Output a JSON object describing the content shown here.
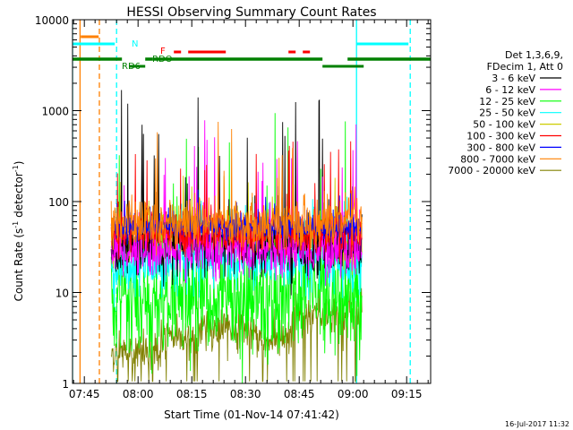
{
  "chart_data": {
    "type": "line",
    "title": "HESSI Observing Summary Count Rates",
    "xlabel": "Start Time (01-Nov-14 07:41:42)",
    "ylabel_prefix": "Count Rate (s",
    "ylabel_sup": "-1",
    "ylabel_mid": " detector",
    "ylabel_suffix": ")",
    "x_ticks": [
      "07:45",
      "08:00",
      "08:15",
      "08:30",
      "08:45",
      "09:00",
      "09:15"
    ],
    "x_tick_minutes": [
      465,
      480,
      495,
      510,
      525,
      540,
      555
    ],
    "xlim_minutes": [
      461.7,
      561.7
    ],
    "y_scale": "log",
    "ylim": [
      1,
      10000
    ],
    "y_ticks": [
      "1",
      "10",
      "100",
      "1000",
      "10000"
    ],
    "y_tick_values": [
      1,
      10,
      100,
      1000,
      10000
    ],
    "data_start_minute": 472.5,
    "data_end_minute": 542.5,
    "legend_header": [
      "Det 1,3,6,9,",
      "FDecim 1, Att 0"
    ],
    "legend_placement": "right",
    "series": [
      {
        "name": "3 - 6 keV",
        "color": "#000000",
        "level": 32,
        "spread": 0.45,
        "spike_max": 1800
      },
      {
        "name": "6 - 12 keV",
        "color": "#ff00ff",
        "level": 30,
        "spread": 0.45,
        "spike_max": 900
      },
      {
        "name": "12 - 25 keV",
        "color": "#00ff00",
        "level": 9,
        "spread": 0.85,
        "spike_max": 1200
      },
      {
        "name": "25 - 50 keV",
        "color": "#00ffff",
        "level": 20,
        "spread": 0.45,
        "spike_max": 120
      },
      {
        "name": "50 - 100 keV",
        "color": "#cccc00",
        "level": 38,
        "spread": 0.3,
        "spike_max": 200
      },
      {
        "name": "100 - 300 keV",
        "color": "#ff0000",
        "level": 45,
        "spread": 0.3,
        "spike_max": 600
      },
      {
        "name": "300 - 800 keV",
        "color": "#0000ff",
        "level": 52,
        "spread": 0.2,
        "spike_max": 150
      },
      {
        "name": "800 - 7000 keV",
        "color": "#ff8000",
        "level": 58,
        "spread": 0.4,
        "spike_max": 900
      },
      {
        "name": "7000 - 20000 keV",
        "color": "#808000",
        "level": 3,
        "spread": 0.3,
        "spike_max": 6
      }
    ],
    "flag_labels": {
      "n": "N",
      "f": "F",
      "rdo": "RDO",
      "rd6": "RD6"
    },
    "flag_segments": {
      "saa_orange": [
        [
          464,
          469
        ]
      ],
      "night_cyan": [
        [
          461.7,
          473.5
        ],
        [
          541,
          555.5
        ]
      ],
      "flare_red": [
        [
          490,
          492
        ],
        [
          494,
          504.5
        ],
        [
          522,
          524
        ],
        [
          526,
          528
        ]
      ],
      "decim_green": [
        [
          461.7,
          475.5
        ],
        [
          482,
          484
        ],
        [
          484,
          531.5
        ],
        [
          538.5,
          561.7
        ]
      ],
      "rd6_green": [
        [
          477.5,
          482
        ],
        [
          531.5,
          543
        ]
      ]
    },
    "vertical_lines": [
      {
        "minute": 461.7,
        "color": "#00ffff",
        "style": "solid"
      },
      {
        "minute": 463.8,
        "color": "#ff8000",
        "style": "solid"
      },
      {
        "minute": 469.2,
        "color": "#ff8000",
        "style": "dashed"
      },
      {
        "minute": 474.0,
        "color": "#00ffff",
        "style": "dashed"
      },
      {
        "minute": 541.0,
        "color": "#00ffff",
        "style": "solid"
      },
      {
        "minute": 556.0,
        "color": "#00ffff",
        "style": "dashed"
      }
    ],
    "timestamp": "16-Jul-2017 11:32"
  }
}
